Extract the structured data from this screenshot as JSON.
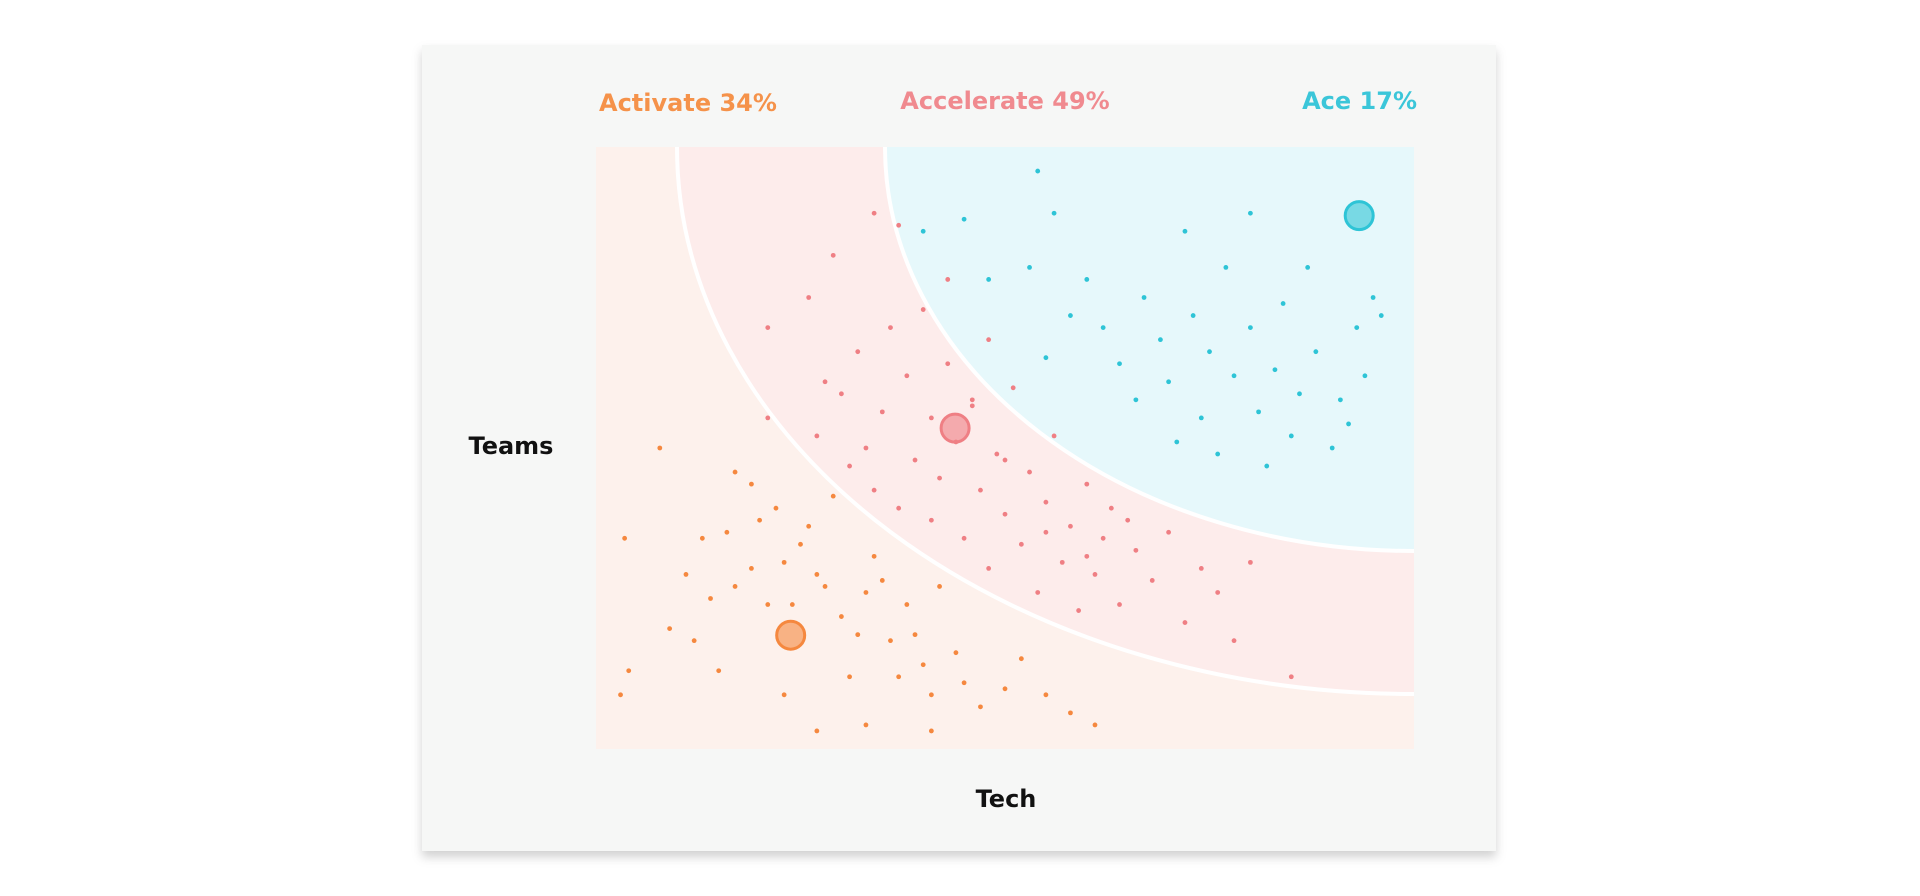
{
  "chart_data": {
    "type": "scatter",
    "x_label": "Tech",
    "y_label": "Teams",
    "xlim": [
      0,
      100
    ],
    "ylim": [
      0,
      100
    ],
    "series": [
      {
        "name": "Activate",
        "share": 34,
        "share_label": "34%",
        "color": "#f5883f",
        "center": {
          "x": 23.8,
          "y": 18.9
        },
        "x": [
          3.5,
          4,
          3,
          7.8,
          9,
          11,
          13,
          12,
          16,
          15,
          17,
          17,
          19,
          20,
          21,
          22,
          23,
          25,
          26,
          27,
          28,
          29,
          30,
          32,
          33,
          34,
          35,
          36,
          38,
          39,
          40,
          41,
          42,
          44,
          45,
          47,
          50,
          52,
          55,
          58,
          61,
          27,
          33,
          41,
          23,
          31,
          37,
          19,
          24,
          14
        ],
        "y": [
          35,
          13,
          9,
          50,
          20,
          29,
          35,
          18,
          36,
          13,
          27,
          46,
          44,
          38,
          24,
          40,
          31,
          34,
          37,
          29,
          27,
          42,
          22,
          19,
          26,
          32,
          28,
          18,
          24,
          19,
          14,
          9,
          27,
          16,
          11,
          7,
          10,
          15,
          9,
          6,
          4,
          3,
          4,
          3,
          9,
          12,
          12,
          30,
          24,
          25
        ]
      },
      {
        "name": "Accelerate",
        "share": 49,
        "share_label": "49%",
        "color": "#ef7f84",
        "center": {
          "x": 43.9,
          "y": 53.3
        },
        "x": [
          21,
          21,
          26,
          27,
          28,
          30,
          31,
          32,
          33,
          34,
          35,
          36,
          37,
          38,
          39,
          40,
          41,
          41,
          42,
          43,
          44,
          45,
          46,
          47,
          48,
          48,
          49,
          50,
          51,
          52,
          53,
          54,
          55,
          56,
          57,
          58,
          59,
          60,
          61,
          62,
          63,
          64,
          66,
          68,
          70,
          72,
          74,
          76,
          78,
          80,
          85,
          29,
          34,
          37,
          43,
          46,
          50,
          55,
          60,
          65
        ],
        "y": [
          70,
          55,
          75,
          52,
          61,
          59,
          47,
          66,
          50,
          43,
          56,
          70,
          40,
          62,
          48,
          73,
          55,
          38,
          45,
          64,
          51,
          35,
          58,
          43,
          68,
          30,
          49,
          39,
          60,
          34,
          46,
          26,
          41,
          52,
          31,
          37,
          23,
          44,
          29,
          35,
          40,
          24,
          33,
          28,
          36,
          21,
          30,
          26,
          18,
          31,
          12,
          82,
          89,
          87,
          78,
          57,
          48,
          36,
          32,
          38
        ]
      },
      {
        "name": "Ace",
        "share": 17,
        "share_label": "17%",
        "color": "#2ec4d6",
        "center": {
          "x": 93.3,
          "y": 88.6
        },
        "x": [
          54,
          56,
          45,
          40,
          48,
          53,
          58,
          55,
          60,
          62,
          64,
          66,
          67,
          69,
          70,
          71,
          73,
          74,
          75,
          76,
          77,
          78,
          80,
          81,
          82,
          83,
          84,
          85,
          86,
          87,
          88,
          90,
          91,
          92,
          93,
          94,
          95,
          96,
          80,
          72
        ],
        "y": [
          96,
          89,
          88,
          86,
          78,
          80,
          72,
          65,
          78,
          70,
          64,
          58,
          75,
          68,
          61,
          51,
          72,
          55,
          66,
          49,
          80,
          62,
          70,
          56,
          47,
          63,
          74,
          52,
          59,
          80,
          66,
          50,
          58,
          54,
          70,
          62,
          75,
          72,
          89,
          86
        ]
      }
    ]
  }
}
